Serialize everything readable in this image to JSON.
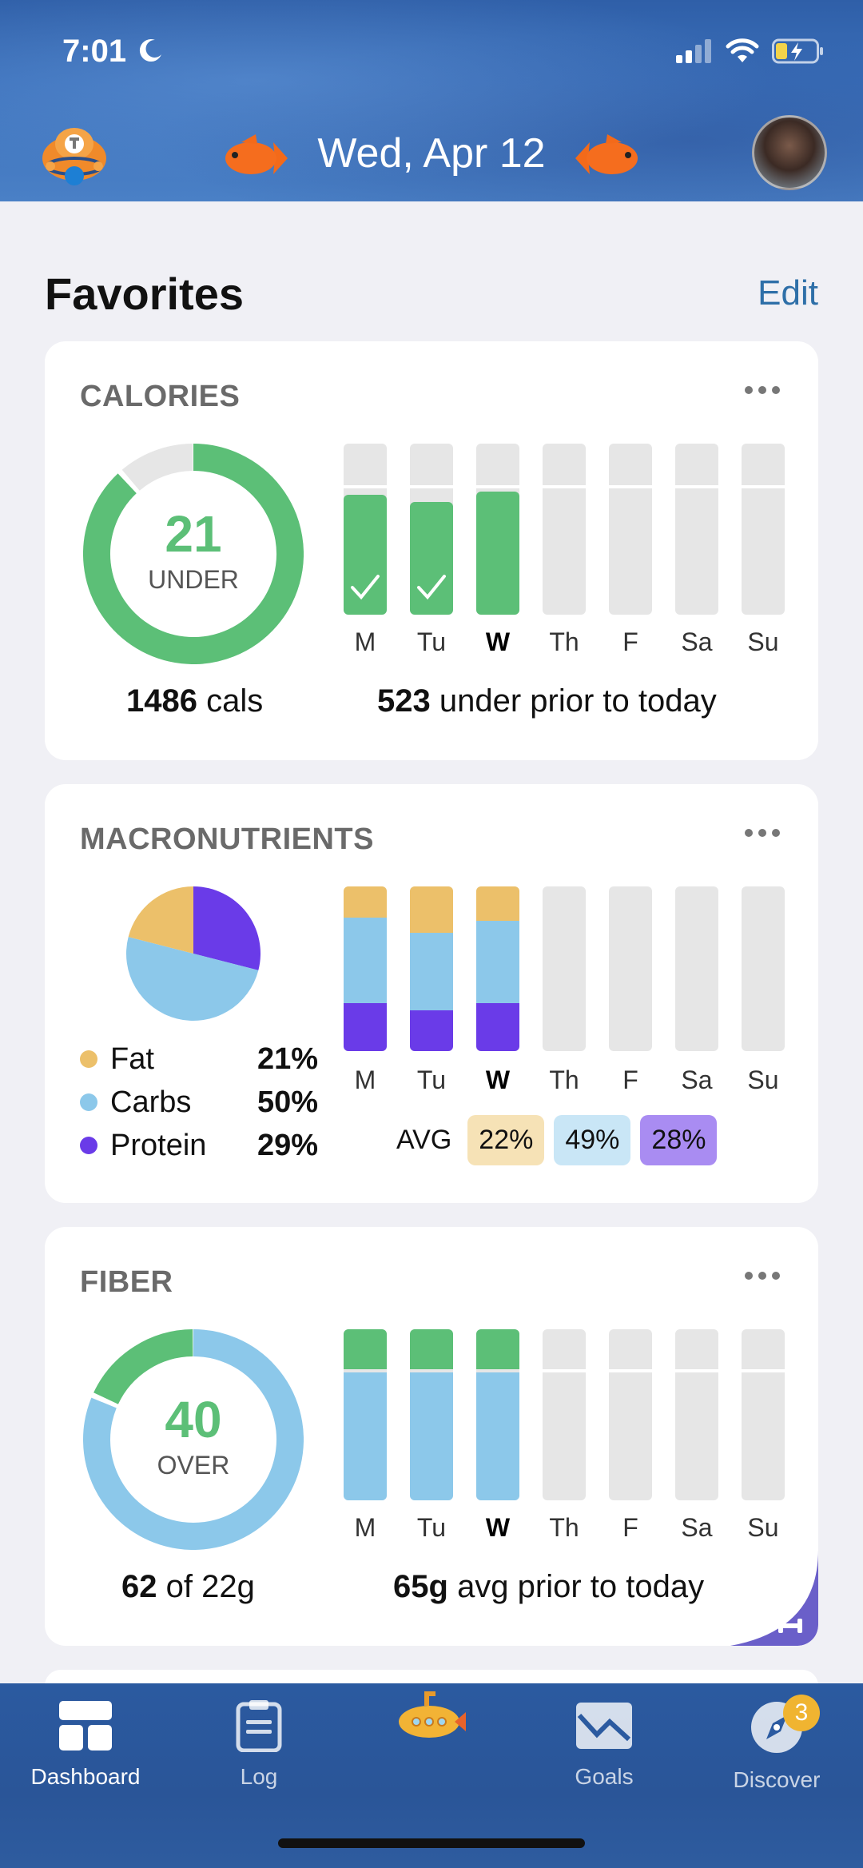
{
  "status_bar": {
    "time": "7:01"
  },
  "header": {
    "date": "Wed, Apr 12"
  },
  "favorites": {
    "title": "Favorites",
    "edit_label": "Edit"
  },
  "days": [
    "M",
    "Tu",
    "W",
    "Th",
    "F",
    "Sa",
    "Su"
  ],
  "today_index": 2,
  "calories": {
    "title": "CALORIES",
    "ring_value": "21",
    "ring_label": "UNDER",
    "ring_fraction": 0.88,
    "cals_value": "1486",
    "cals_unit": "cals",
    "prior_value": "523",
    "prior_text": "under prior to today",
    "bar_fill": [
      0.7,
      0.66,
      0.72,
      0,
      0,
      0,
      0
    ],
    "bar_check": [
      true,
      true,
      false,
      false,
      false,
      false,
      false
    ],
    "color_under": "#5cbf77"
  },
  "macronutrients": {
    "title": "MACRONUTRIENTS",
    "legend": [
      {
        "name": "Fat",
        "pct": "21%",
        "color": "#ecc06a"
      },
      {
        "name": "Carbs",
        "pct": "50%",
        "color": "#8cc8ea"
      },
      {
        "name": "Protein",
        "pct": "29%",
        "color": "#6a3be8"
      }
    ],
    "pie_values": [
      21,
      50,
      29
    ],
    "bars": [
      {
        "fat": 0.19,
        "carbs": 0.52,
        "protein": 0.29
      },
      {
        "fat": 0.28,
        "carbs": 0.47,
        "protein": 0.25
      },
      {
        "fat": 0.21,
        "carbs": 0.5,
        "protein": 0.29
      },
      null,
      null,
      null,
      null
    ],
    "avg_label": "AVG",
    "avg": [
      {
        "value": "22%",
        "bg": "#f6e2b6"
      },
      {
        "value": "49%",
        "bg": "#c9e6f6"
      },
      {
        "value": "28%",
        "bg": "#a98cf2"
      }
    ]
  },
  "fiber": {
    "title": "FIBER",
    "ring_value": "40",
    "ring_label": "OVER",
    "ring_over_fraction": 0.18,
    "amount_value": "62",
    "amount_text": "of 22g",
    "avg_value": "65g",
    "avg_text": "avg prior to today",
    "bar_fill": [
      1,
      1,
      1,
      0,
      0,
      0,
      0
    ],
    "color_base": "#8cc8ea",
    "color_over": "#5cbf77"
  },
  "tabs": [
    {
      "label": "Dashboard",
      "icon": "dashboard-icon"
    },
    {
      "label": "Log",
      "icon": "clipboard-icon"
    },
    {
      "label": "",
      "icon": "submarine-icon"
    },
    {
      "label": "Goals",
      "icon": "goals-chart-icon"
    },
    {
      "label": "Discover",
      "icon": "compass-icon",
      "badge": "3"
    }
  ]
}
